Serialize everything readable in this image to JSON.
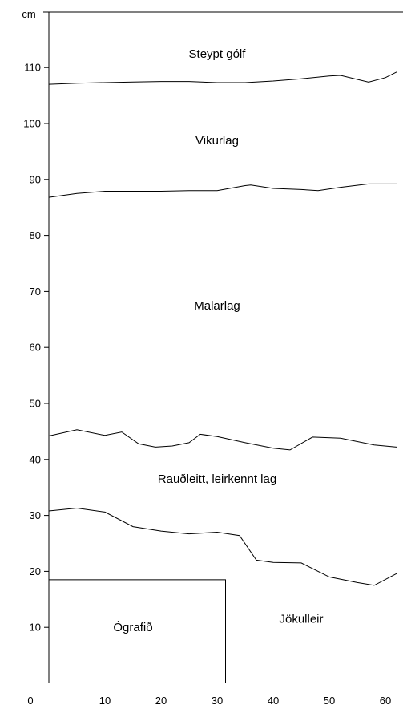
{
  "chart_data": {
    "type": "line",
    "title": "",
    "ylabel": "cm",
    "xlabel": "",
    "xlim": [
      0,
      63
    ],
    "ylim": [
      -3,
      115
    ],
    "y_ticks": [
      10,
      20,
      30,
      40,
      50,
      60,
      70,
      80,
      90,
      100,
      110
    ],
    "x_ticks": [
      0,
      10,
      20,
      30,
      40,
      50,
      60
    ],
    "x_ticks_labels": [
      "0",
      "10",
      "20",
      "30",
      "40",
      "50",
      "60"
    ],
    "y_ticks_labels": [
      "10",
      "20",
      "30",
      "40",
      "50",
      "60",
      "70",
      "80",
      "90",
      "100",
      "110"
    ],
    "grid": false,
    "series": [
      {
        "x": [
          0,
          5,
          10,
          15,
          20,
          25,
          30,
          35,
          40,
          45,
          50,
          52,
          57,
          60,
          62
        ],
        "y": [
          107,
          107.2,
          107.3,
          107.4,
          107.5,
          107.5,
          107.3,
          107.3,
          107.6,
          108,
          108.5,
          108.6,
          107.4,
          108.2,
          109.2
        ]
      },
      {
        "x": [
          0,
          5,
          10,
          15,
          20,
          25,
          30,
          35,
          36,
          40,
          45,
          48,
          52,
          57,
          60,
          62
        ],
        "y": [
          86.8,
          87.5,
          87.9,
          87.9,
          87.9,
          88,
          88,
          88.9,
          89,
          88.4,
          88.2,
          88,
          88.6,
          89.2,
          89.2,
          89.2
        ]
      },
      {
        "x": [
          0,
          5,
          10,
          13,
          16,
          19,
          22,
          25,
          27,
          30,
          35,
          40,
          43,
          47,
          52,
          58,
          62
        ],
        "y": [
          44.2,
          45.3,
          44.3,
          44.9,
          42.8,
          42.2,
          42.4,
          43,
          44.5,
          44.1,
          43,
          42,
          41.7,
          44,
          43.8,
          42.6,
          42.2
        ]
      },
      {
        "x": [
          0,
          5,
          10,
          15,
          20,
          25,
          30,
          34,
          37,
          40,
          45,
          50,
          55,
          58,
          62
        ],
        "y": [
          30.8,
          31.3,
          30.6,
          28,
          27.2,
          26.7,
          27,
          26.4,
          22,
          21.6,
          21.5,
          19,
          18,
          17.5,
          19.6
        ]
      }
    ],
    "regions": [
      {
        "label": "Steypt gólf",
        "x": 30,
        "y": 112.5
      },
      {
        "label": "Vikurlag",
        "x": 30,
        "y": 97
      },
      {
        "label": "Malarlag",
        "x": 30,
        "y": 67.5
      },
      {
        "label": "Rauðleitt, leirkennt lag",
        "x": 30,
        "y": 36.5
      },
      {
        "label": "Jökulleir",
        "x": 45,
        "y": 11.5
      },
      {
        "label": "Ógrafið",
        "x": 15,
        "y": 10
      }
    ],
    "box": {
      "label": "Ógrafið",
      "x0": 0,
      "x1": 31.5,
      "y0": 0,
      "y1": 18.5
    }
  }
}
